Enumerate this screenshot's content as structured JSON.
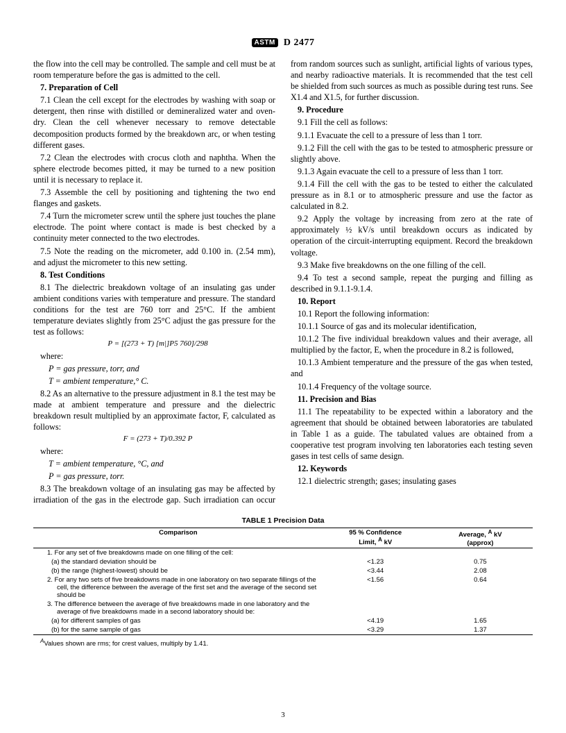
{
  "header": {
    "logo": "ASTM",
    "designation": "D 2477"
  },
  "page_number": "3",
  "col": {
    "p_intro": "the flow into the cell may be controlled. The sample and cell must be at room temperature before the gas is admitted to the cell.",
    "s7_head": "7.  Preparation of Cell",
    "s7_1": "7.1  Clean the cell except for the electrodes by washing with soap or detergent, then rinse with distilled or demineralized water and oven-dry. Clean the cell whenever necessary to remove detectable decomposition products formed by the breakdown arc, or when testing different gases.",
    "s7_2": "7.2  Clean the electrodes with crocus cloth and naphtha. When the sphere electrode becomes pitted, it may be turned to a new position until it is necessary to replace it.",
    "s7_3": "7.3  Assemble the cell by positioning and tightening the two end flanges and gaskets.",
    "s7_4": "7.4  Turn the micrometer screw until the sphere just touches the plane electrode. The point where contact is made is best checked by a continuity meter connected to the two electrodes.",
    "s7_5": "7.5  Note the reading on the micrometer, add 0.100 in. (2.54 mm), and adjust the micrometer to this new setting.",
    "s8_head": "8.  Test Conditions",
    "s8_1": "8.1  The dielectric breakdown voltage of an insulating gas under ambient conditions varies with temperature and pressure. The standard conditions for the test are 760 torr and 25°C. If the ambient temperature deviates slightly from 25°C adjust the gas pressure for the test as follows:",
    "eq1": "P = [(273 + T) [m|]P5 760]/298",
    "where1": "where:",
    "w1_P": "P  =  gas pressure, torr, and",
    "w1_T": "T  =  ambient temperature,° C.",
    "s8_2": "8.2  As an alternative to the pressure adjustment in 8.1 the test may be made at ambient temperature and pressure and the dielectric breakdown result multiplied by an approximate factor, F, calculated as follows:",
    "eq2": "F = (273 + T)/0.392 P",
    "where2": "where:",
    "w2_T": "T  =  ambient temperature, °C, and",
    "w2_P": "P  =  gas pressure, torr.",
    "s8_3": "8.3  The breakdown voltage of an insulating gas may be affected by irradiation of the gas in the electrode gap. Such irradiation can occur from random sources such as sunlight, artificial lights of various types, and nearby radioactive materials. It is recommended that the test cell be shielded from such sources as much as possible during test runs. See X1.4 and X1.5, for further discussion.",
    "s9_head": "9.  Procedure",
    "s9_1": "9.1  Fill the cell as follows:",
    "s9_1_1": "9.1.1  Evacuate the cell to a pressure of less than 1 torr.",
    "s9_1_2": "9.1.2  Fill the cell with the gas to be tested to atmospheric pressure or slightly above.",
    "s9_1_3": "9.1.3  Again evacuate the cell to a pressure of less than 1 torr.",
    "s9_1_4": "9.1.4  Fill the cell with the gas to be tested to either the calculated pressure as in 8.1 or to atmospheric pressure and use the factor as calculated in 8.2.",
    "s9_2": "9.2  Apply the voltage by increasing from zero at the rate of approximately ½ kV/s until breakdown occurs as indicated by operation of the circuit-interrupting equipment. Record the breakdown voltage.",
    "s9_3": "9.3  Make five breakdowns on the one filling of the cell.",
    "s9_4": "9.4  To test a second sample, repeat the purging and filling as described in 9.1.1-9.1.4.",
    "s10_head": "10.  Report",
    "s10_1": "10.1  Report the following information:",
    "s10_1_1": "10.1.1  Source of gas and its molecular identification,",
    "s10_1_2": "10.1.2  The five individual breakdown values and their average, all multiplied by the factor, E, when the procedure in 8.2 is followed,",
    "s10_1_3": "10.1.3  Ambient temperature and the pressure of the gas when tested, and",
    "s10_1_4": "10.1.4  Frequency of the voltage source.",
    "s11_head": "11.  Precision and Bias",
    "s11_1": "11.1  The repeatability to be expected within a laboratory and the agreement that should be obtained between laboratories are tabulated in Table 1 as a guide. The tabulated values are obtained from a cooperative test program involving ten laboratories each testing seven gases in test cells of same design.",
    "s12_head": "12.  Keywords",
    "s12_1": "12.1  dielectric strength; gases; insulating gases"
  },
  "table": {
    "title": "TABLE 1  Precision Data",
    "head_comparison": "Comparison",
    "head_conf_1": "95 % Confidence",
    "head_conf_2": "Limit, ",
    "head_conf_3": " kV",
    "head_avg_1": "Average, ",
    "head_avg_2": " kV",
    "head_avg_3": "(approx)",
    "superA": "A",
    "rows": [
      {
        "text": "1.  For any set of five breakdowns made on one filling of the cell:",
        "conf": "",
        "avg": ""
      },
      {
        "text": "(a)  the standard deviation should be",
        "conf": "<1.23",
        "avg": "0.75",
        "sub": true
      },
      {
        "text": "(b)  the range (highest-lowest) should be",
        "conf": "<3.44",
        "avg": "2.08",
        "sub": true
      },
      {
        "text": "2.  For any two sets of five breakdowns made in one laboratory on two separate fillings of the cell, the difference between the average of the first set and the average of the second set should be",
        "conf": "<1.56",
        "avg": "0.64"
      },
      {
        "text": "3.  The difference between the average of five breakdowns made in one laboratory and the average of five breakdowns made in a second laboratory should be:",
        "conf": "",
        "avg": ""
      },
      {
        "text": "(a)  for different samples of gas",
        "conf": "<4.19",
        "avg": "1.65",
        "sub": true
      },
      {
        "text": "(b)  for the same sample of gas",
        "conf": "<3.29",
        "avg": "1.37",
        "sub": true
      }
    ],
    "note_pre": "A",
    "note": "Values shown are rms; for crest values, multiply by 1.41."
  }
}
